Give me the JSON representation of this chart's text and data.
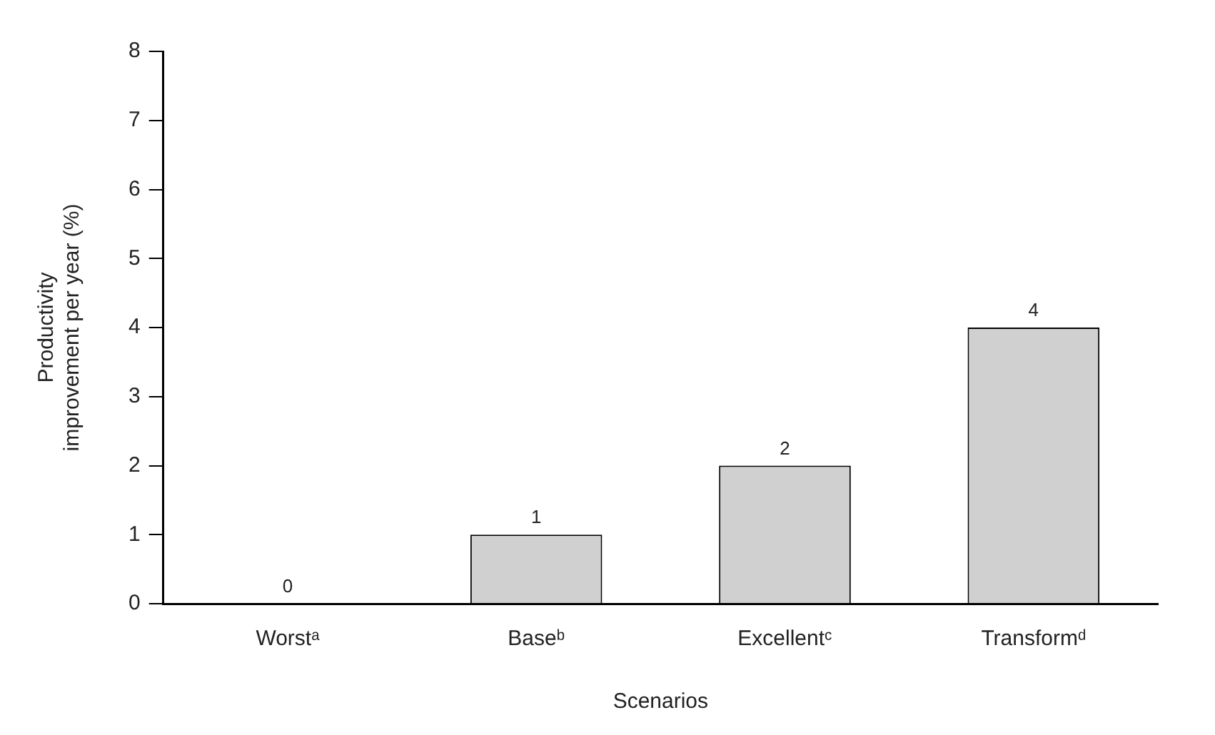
{
  "chart_data": {
    "type": "bar",
    "xlabel": "Scenarios",
    "ylabel": "Productivity improvement per year (%)",
    "categories": [
      "Worstᵃ",
      "Baseᵇ",
      "Excellentᶜ",
      "Transformᵈ"
    ],
    "values": [
      0,
      1,
      2,
      4
    ],
    "color": "#d0d0d0",
    "ylim": [
      0,
      8
    ],
    "yticks": [
      0,
      1,
      2,
      3,
      4,
      5,
      6,
      7,
      8
    ],
    "data_labels": true
  }
}
